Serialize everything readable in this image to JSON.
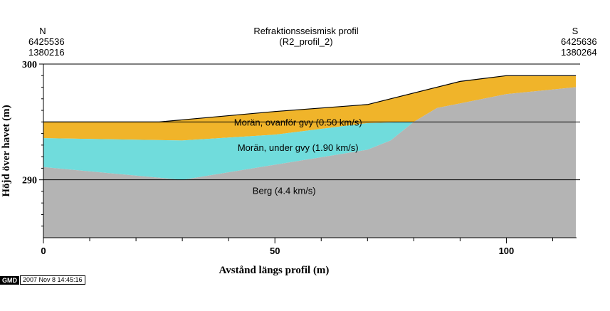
{
  "chart_data": {
    "type": "area",
    "title": "Refraktionsseismisk profil",
    "subtitle": "(R2_profil_2)",
    "xlabel": "Avstånd längs profil (m)",
    "ylabel": "Höjd över havet (m)",
    "xlim": [
      0,
      115
    ],
    "ylim": [
      285,
      300
    ],
    "x_ticks": [
      0,
      50,
      100
    ],
    "y_ticks": [
      290,
      300
    ],
    "left_end": {
      "direction": "N",
      "north": "6425536",
      "east": "1380216"
    },
    "right_end": {
      "direction": "S",
      "north": "6425636",
      "east": "1380264"
    },
    "reference_lines_y": [
      295,
      290
    ],
    "layers": [
      {
        "name": "Morän, ovanför gvy (0.50 km/s)",
        "color": "#f0b42a",
        "label_pos": [
          55,
          295.0
        ],
        "top": [
          [
            0,
            295
          ],
          [
            25,
            295
          ],
          [
            50,
            295.9
          ],
          [
            70,
            296.5
          ],
          [
            90,
            298.5
          ],
          [
            100,
            299
          ],
          [
            115,
            299
          ]
        ],
        "bottom": [
          [
            0,
            293.6
          ],
          [
            30,
            293.4
          ],
          [
            50,
            293.9
          ],
          [
            70,
            294.9
          ],
          [
            80,
            295
          ],
          [
            85,
            296.2
          ],
          [
            100,
            297.4
          ],
          [
            115,
            298
          ]
        ]
      },
      {
        "name": "Morän, under gvy (1.90 km/s)",
        "color": "#70dcdc",
        "label_pos": [
          55,
          292.8
        ],
        "top": [
          [
            0,
            293.6
          ],
          [
            30,
            293.4
          ],
          [
            50,
            293.9
          ],
          [
            70,
            294.9
          ],
          [
            80,
            295
          ]
        ],
        "bottom": [
          [
            0,
            291.1
          ],
          [
            30,
            290.0
          ],
          [
            50,
            291.3
          ],
          [
            70,
            292.6
          ],
          [
            75,
            293.4
          ],
          [
            80,
            295
          ]
        ]
      },
      {
        "name": "Berg (4.4 km/s)",
        "color": "#b4b4b4",
        "label_pos": [
          52,
          289.1
        ],
        "top": [
          [
            0,
            291.1
          ],
          [
            30,
            290.0
          ],
          [
            50,
            291.3
          ],
          [
            70,
            292.6
          ],
          [
            75,
            293.4
          ],
          [
            80,
            295
          ],
          [
            85,
            296.2
          ],
          [
            100,
            297.4
          ],
          [
            115,
            298
          ]
        ],
        "bottom": [
          [
            0,
            285
          ],
          [
            115,
            285
          ]
        ]
      }
    ],
    "surface_line": [
      [
        0,
        295
      ],
      [
        25,
        295
      ],
      [
        50,
        295.9
      ],
      [
        70,
        296.5
      ],
      [
        90,
        298.5
      ],
      [
        100,
        299
      ],
      [
        115,
        299
      ]
    ]
  },
  "footer": {
    "logo": "GMD",
    "timestamp": "2007 Nov  8 14:45:16"
  }
}
